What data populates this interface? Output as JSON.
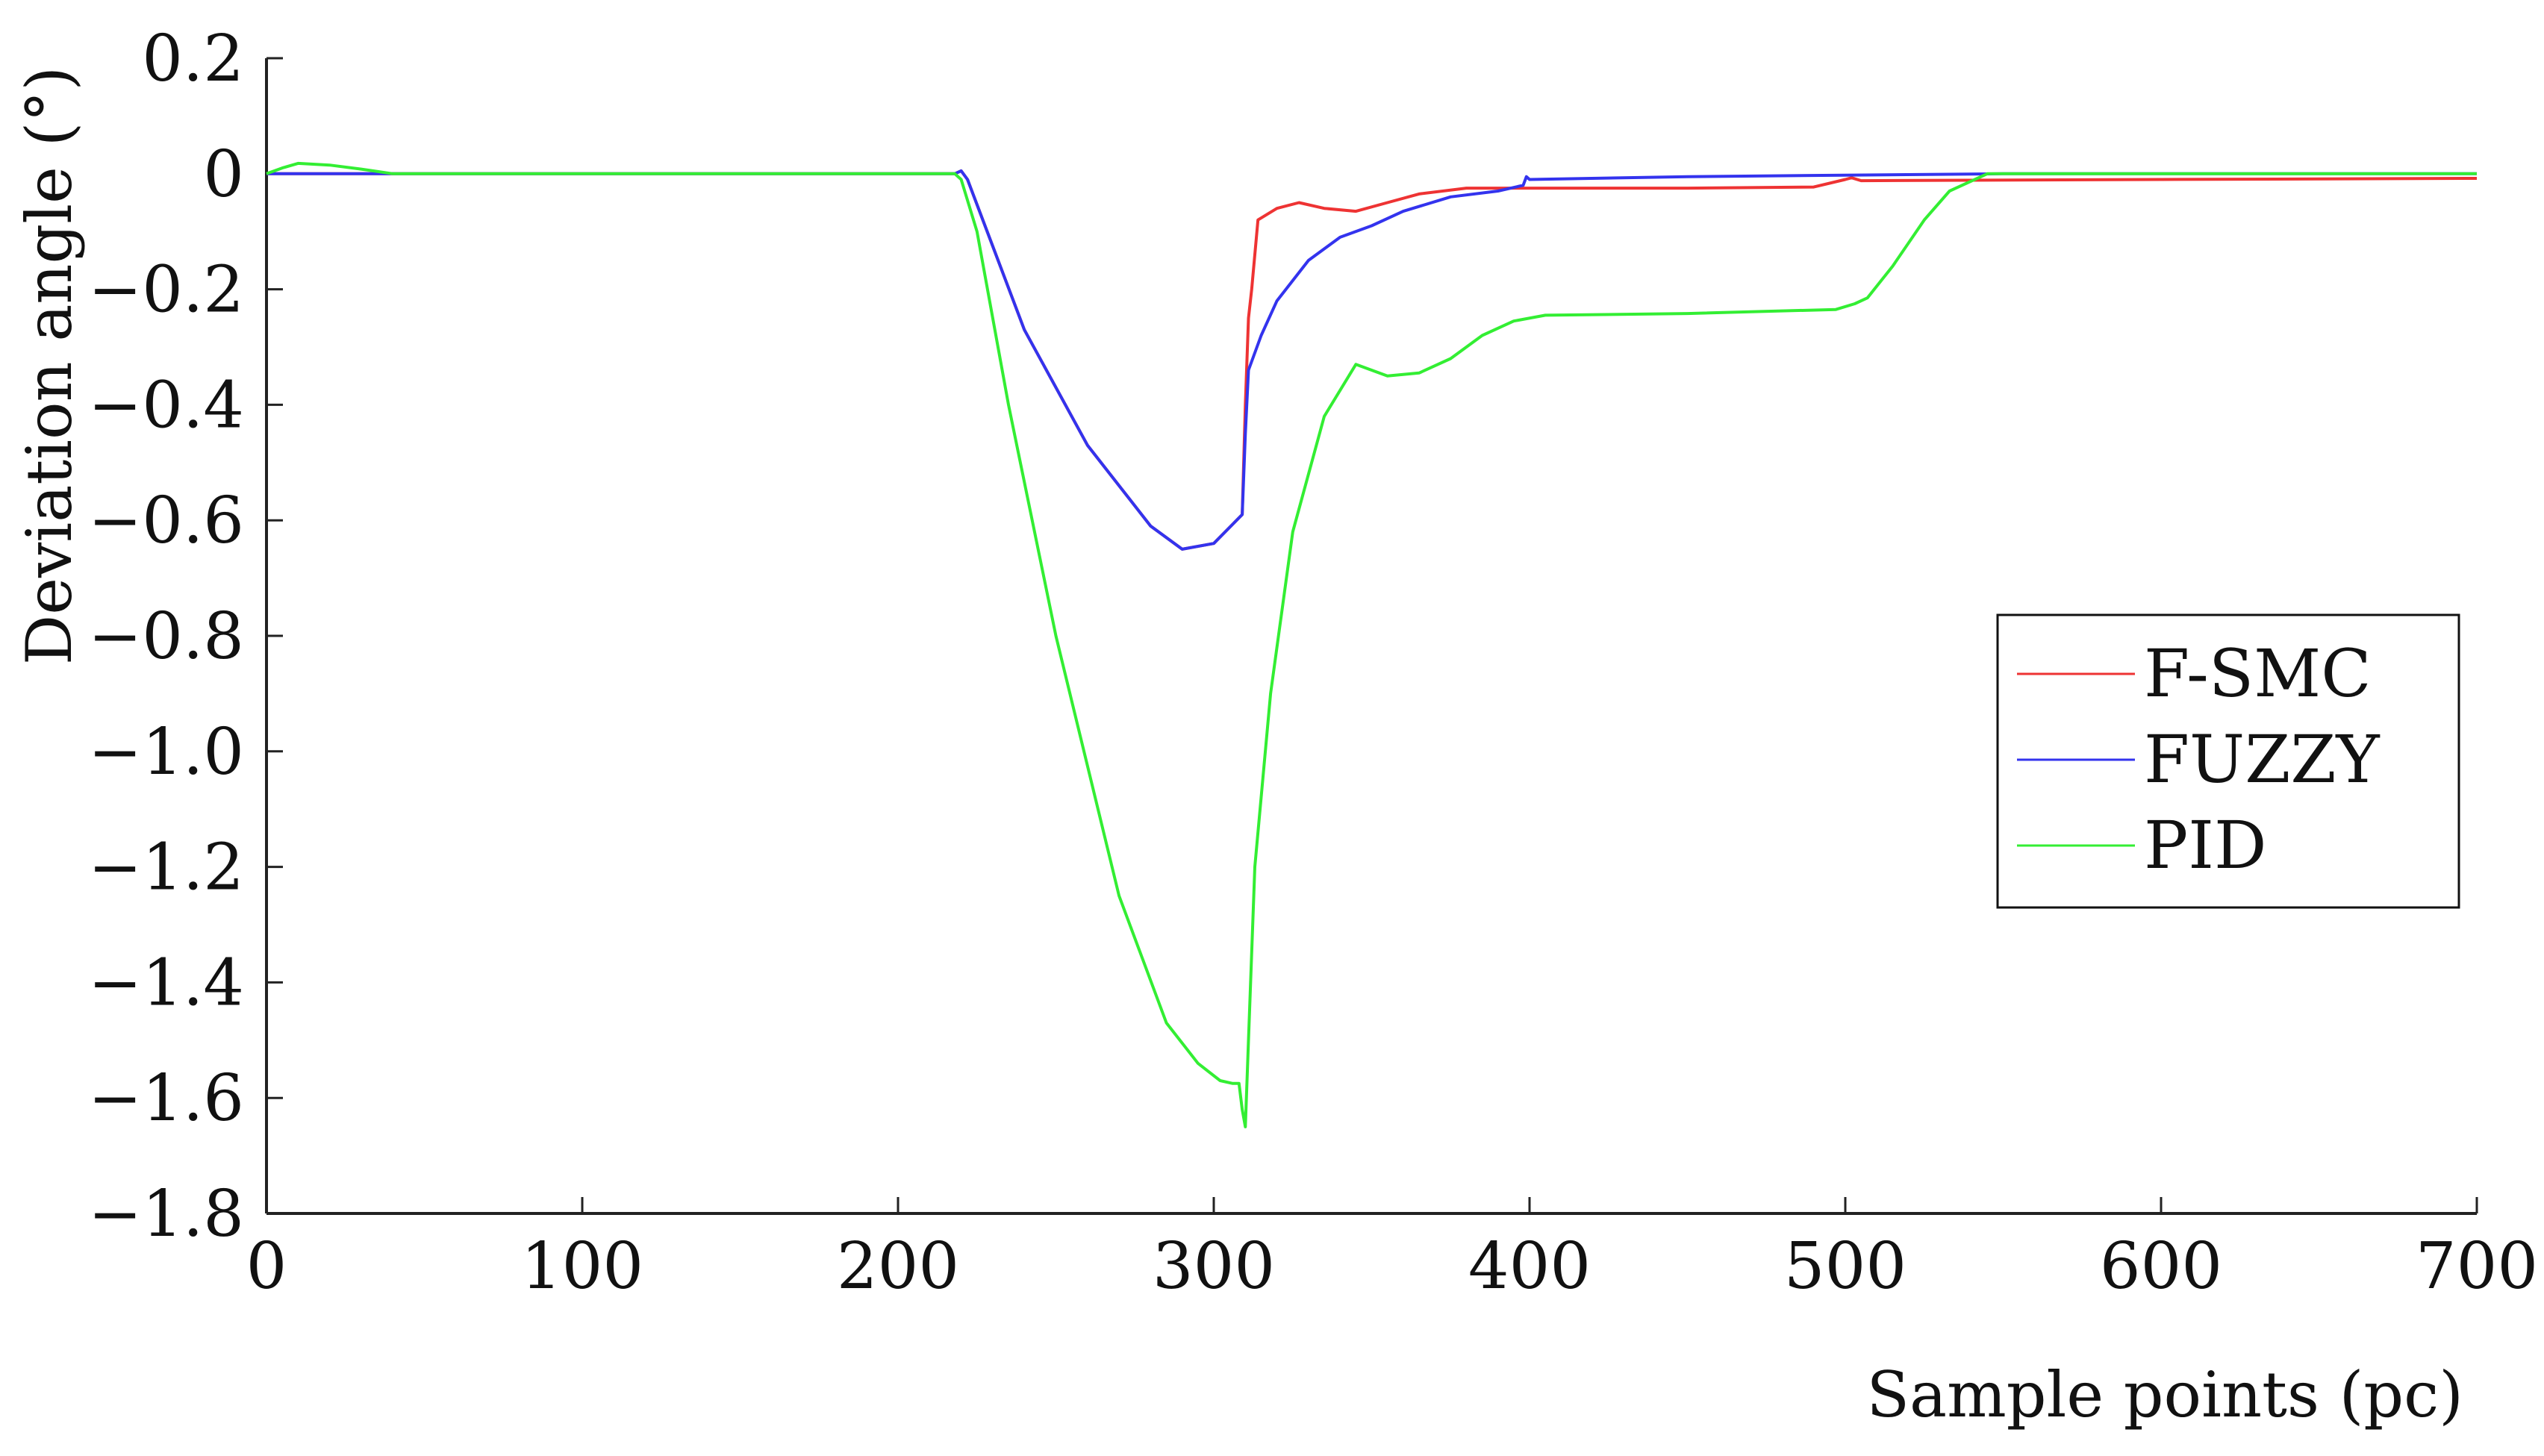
{
  "chart_data": {
    "type": "line",
    "title": "",
    "xlabel": "Sample points (pc)",
    "ylabel": "Deviation angle  (°)",
    "xlim": [
      0,
      700
    ],
    "ylim": [
      -1.8,
      0.2
    ],
    "xticks": [
      0,
      100,
      200,
      300,
      400,
      500,
      600,
      700
    ],
    "xtick_labels": [
      "0",
      "100",
      "200",
      "300",
      "400",
      "500",
      "600",
      "700"
    ],
    "yticks": [
      0.2,
      0,
      -0.2,
      -0.4,
      -0.6,
      -0.8,
      -1.0,
      -1.2,
      -1.4,
      -1.6,
      -1.8
    ],
    "ytick_labels": [
      "0.2",
      "0",
      "−0.2",
      "−0.4",
      "−0.6",
      "−0.8",
      "−1.0",
      "−1.2",
      "−1.4",
      "−1.6",
      "−1.8"
    ],
    "grid": false,
    "legend_position": "center-right",
    "series": [
      {
        "name": "F-SMC",
        "color": "#ee3333",
        "x": [
          0,
          50,
          218,
          220,
          222,
          240,
          260,
          280,
          290,
          300,
          309,
          310,
          311,
          312,
          314,
          320,
          327,
          335,
          345,
          355,
          365,
          380,
          400,
          420,
          450,
          490,
          500,
          502,
          505,
          600,
          700
        ],
        "y": [
          0,
          0,
          0,
          0.005,
          -0.01,
          -0.27,
          -0.47,
          -0.61,
          -0.65,
          -0.64,
          -0.59,
          -0.4,
          -0.25,
          -0.2,
          -0.08,
          -0.06,
          -0.05,
          -0.06,
          -0.065,
          -0.05,
          -0.035,
          -0.025,
          -0.025,
          -0.025,
          -0.025,
          -0.023,
          -0.01,
          -0.007,
          -0.012,
          -0.01,
          -0.008
        ]
      },
      {
        "name": "FUZZY",
        "color": "#3333ee",
        "x": [
          0,
          50,
          218,
          220,
          222,
          240,
          260,
          280,
          290,
          300,
          309,
          310,
          311,
          315,
          320,
          330,
          340,
          350,
          360,
          375,
          390,
          398,
          399,
          400,
          450,
          550,
          700
        ],
        "y": [
          0,
          0,
          0,
          0.005,
          -0.01,
          -0.27,
          -0.47,
          -0.61,
          -0.65,
          -0.64,
          -0.59,
          -0.45,
          -0.34,
          -0.28,
          -0.22,
          -0.15,
          -0.11,
          -0.09,
          -0.065,
          -0.04,
          -0.03,
          -0.02,
          -0.005,
          -0.01,
          -0.005,
          0,
          0
        ]
      },
      {
        "name": "PID",
        "color": "#33ee33",
        "x": [
          0,
          5,
          10,
          20,
          30,
          40,
          218,
          220,
          225,
          235,
          250,
          270,
          285,
          295,
          302,
          306,
          308,
          309,
          310,
          311,
          313,
          318,
          325,
          335,
          345,
          350,
          355,
          365,
          375,
          385,
          395,
          405,
          450,
          497,
          503,
          507,
          515,
          525,
          533,
          545,
          600,
          700
        ],
        "y": [
          0,
          0.01,
          0.018,
          0.015,
          0.008,
          0,
          0,
          -0.01,
          -0.1,
          -0.4,
          -0.8,
          -1.25,
          -1.47,
          -1.54,
          -1.57,
          -1.575,
          -1.575,
          -1.62,
          -1.65,
          -1.5,
          -1.2,
          -0.9,
          -0.62,
          -0.42,
          -0.33,
          -0.34,
          -0.35,
          -0.345,
          -0.32,
          -0.28,
          -0.255,
          -0.245,
          -0.242,
          -0.235,
          -0.225,
          -0.215,
          -0.16,
          -0.08,
          -0.03,
          0,
          0,
          0
        ]
      }
    ]
  }
}
